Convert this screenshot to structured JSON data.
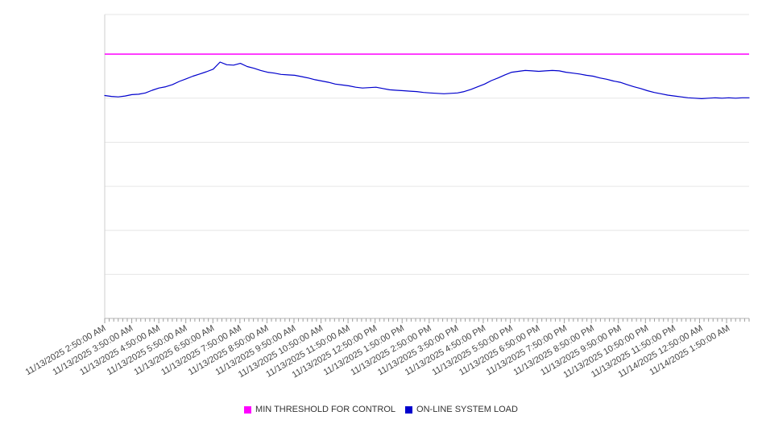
{
  "chart_data": {
    "type": "line",
    "grid": "horizontal",
    "legend_position": "bottom",
    "ylim": [
      0,
      69
    ],
    "sample_minutes": 15,
    "x_labels": [
      "11/13/2025 2:50:00 AM",
      "11/13/2025 3:50:00 AM",
      "11/13/2025 4:50:00 AM",
      "11/13/2025 5:50:00 AM",
      "11/13/2025 6:50:00 AM",
      "11/13/2025 7:50:00 AM",
      "11/13/2025 8:50:00 AM",
      "11/13/2025 9:50:00 AM",
      "11/13/2025 10:50:00 AM",
      "11/13/2025 11:50:00 AM",
      "11/13/2025 12:50:00 PM",
      "11/13/2025 1:50:00 PM",
      "11/13/2025 2:50:00 PM",
      "11/13/2025 3:50:00 PM",
      "11/13/2025 4:50:00 PM",
      "11/13/2025 5:50:00 PM",
      "11/13/2025 6:50:00 PM",
      "11/13/2025 7:50:00 PM",
      "11/13/2025 8:50:00 PM",
      "11/13/2025 9:50:00 PM",
      "11/13/2025 10:50:00 PM",
      "11/13/2025 11:50:00 PM",
      "11/14/2025 12:50:00 AM",
      "11/14/2025 1:50:00 AM"
    ],
    "series": [
      {
        "name": "MIN THRESHOLD FOR CONTROL",
        "type": "threshold",
        "color": "#FF00FF",
        "value": 60
      },
      {
        "name": "ON-LINE SYSTEM LOAD",
        "type": "line",
        "color": "#0000CD",
        "values": [
          50.6,
          50.4,
          50.3,
          50.5,
          50.8,
          50.9,
          51.2,
          51.8,
          52.3,
          52.6,
          53.1,
          53.8,
          54.4,
          55.0,
          55.5,
          56.0,
          56.6,
          58.2,
          57.6,
          57.5,
          57.9,
          57.2,
          56.8,
          56.3,
          55.9,
          55.7,
          55.4,
          55.3,
          55.2,
          54.9,
          54.6,
          54.2,
          53.9,
          53.6,
          53.2,
          53.0,
          52.8,
          52.5,
          52.3,
          52.4,
          52.5,
          52.2,
          51.9,
          51.8,
          51.7,
          51.6,
          51.5,
          51.3,
          51.2,
          51.1,
          51.0,
          51.1,
          51.2,
          51.5,
          52.0,
          52.6,
          53.2,
          54.0,
          54.6,
          55.3,
          55.9,
          56.1,
          56.3,
          56.2,
          56.1,
          56.2,
          56.3,
          56.2,
          55.9,
          55.7,
          55.5,
          55.2,
          55.0,
          54.6,
          54.3,
          53.9,
          53.6,
          53.1,
          52.6,
          52.2,
          51.7,
          51.3,
          51.0,
          50.7,
          50.5,
          50.3,
          50.1,
          50.0,
          49.9,
          50.0,
          50.1,
          50.0,
          50.1,
          50.0,
          50.1,
          50.1
        ]
      }
    ]
  }
}
